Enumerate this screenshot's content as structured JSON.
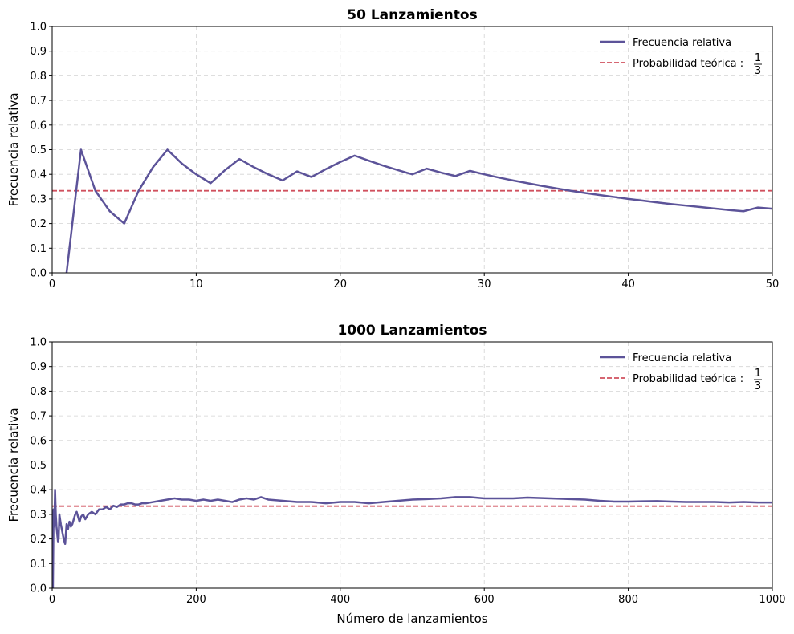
{
  "chart_data": [
    {
      "type": "line",
      "title": "50 Lanzamientos",
      "xlabel": "",
      "ylabel": "Frecuencia relativa",
      "xlim": [
        0,
        50
      ],
      "ylim": [
        0,
        1.0
      ],
      "xticks": [
        0,
        10,
        20,
        30,
        40,
        50
      ],
      "yticks": [
        0.0,
        0.1,
        0.2,
        0.3,
        0.4,
        0.5,
        0.6,
        0.7,
        0.8,
        0.9,
        1.0
      ],
      "xtick_labels": [
        "0",
        "10",
        "20",
        "30",
        "40",
        "50"
      ],
      "ytick_labels": [
        "0.0",
        "0.1",
        "0.2",
        "0.3",
        "0.4",
        "0.5",
        "0.6",
        "0.7",
        "0.8",
        "0.9",
        "1.0"
      ],
      "grid": true,
      "legend_position": "top-right",
      "series": [
        {
          "name": "Frecuencia relativa",
          "color": "#5c5399",
          "style": "solid",
          "x": [
            1,
            2,
            3,
            4,
            5,
            6,
            7,
            8,
            9,
            10,
            11,
            12,
            13,
            14,
            15,
            16,
            17,
            18,
            19,
            20,
            21,
            22,
            23,
            24,
            25,
            26,
            27,
            28,
            29,
            30,
            31,
            32,
            33,
            34,
            35,
            36,
            37,
            38,
            39,
            40,
            41,
            42,
            43,
            44,
            45,
            46,
            47,
            48,
            49,
            50
          ],
          "y": [
            0,
            0.5,
            0.333,
            0.25,
            0.2,
            0.333,
            0.429,
            0.5,
            0.444,
            0.4,
            0.364,
            0.417,
            0.462,
            0.429,
            0.4,
            0.375,
            0.412,
            0.389,
            0.421,
            0.45,
            0.476,
            0.455,
            0.435,
            0.417,
            0.4,
            0.423,
            0.407,
            0.393,
            0.414,
            0.4,
            0.387,
            0.375,
            0.364,
            0.353,
            0.343,
            0.333,
            0.324,
            0.316,
            0.308,
            0.3,
            0.293,
            0.286,
            0.279,
            0.273,
            0.267,
            0.261,
            0.255,
            0.25,
            0.265,
            0.26
          ]
        }
      ],
      "reference_line": {
        "name": "Probabilidad teórica :",
        "fraction_numerator": "1",
        "fraction_denominator": "3",
        "value": 0.3333,
        "color": "#d0505e",
        "style": "dashed"
      }
    },
    {
      "type": "line",
      "title": "1000 Lanzamientos",
      "xlabel": "Número de lanzamientos",
      "ylabel": "Frecuencia relativa",
      "xlim": [
        0,
        1000
      ],
      "ylim": [
        0,
        1.0
      ],
      "xticks": [
        0,
        200,
        400,
        600,
        800,
        1000
      ],
      "yticks": [
        0.0,
        0.1,
        0.2,
        0.3,
        0.4,
        0.5,
        0.6,
        0.7,
        0.8,
        0.9,
        1.0
      ],
      "xtick_labels": [
        "0",
        "200",
        "400",
        "600",
        "800",
        "1000"
      ],
      "ytick_labels": [
        "0.0",
        "0.1",
        "0.2",
        "0.3",
        "0.4",
        "0.5",
        "0.6",
        "0.7",
        "0.8",
        "0.9",
        "1.0"
      ],
      "grid": true,
      "legend_position": "top-right",
      "series": [
        {
          "name": "Frecuencia relativa",
          "color": "#5c5399",
          "style": "solid",
          "x": [
            1,
            2,
            3,
            4,
            5,
            6,
            7,
            8,
            9,
            10,
            12,
            14,
            16,
            18,
            20,
            22,
            24,
            26,
            28,
            30,
            32,
            34,
            36,
            38,
            40,
            43,
            46,
            50,
            55,
            60,
            65,
            70,
            75,
            80,
            85,
            90,
            95,
            100,
            105,
            110,
            115,
            120,
            125,
            130,
            140,
            150,
            160,
            170,
            180,
            190,
            200,
            210,
            220,
            230,
            240,
            250,
            260,
            270,
            280,
            290,
            300,
            320,
            340,
            360,
            380,
            400,
            420,
            440,
            460,
            480,
            500,
            520,
            540,
            560,
            580,
            600,
            620,
            640,
            660,
            680,
            700,
            720,
            740,
            760,
            780,
            800,
            820,
            840,
            860,
            880,
            900,
            920,
            940,
            960,
            980,
            1000
          ],
          "y": [
            0,
            0.32,
            0.25,
            0.4,
            0.3,
            0.25,
            0.22,
            0.19,
            0.2,
            0.3,
            0.26,
            0.23,
            0.2,
            0.18,
            0.26,
            0.24,
            0.27,
            0.25,
            0.26,
            0.28,
            0.3,
            0.31,
            0.29,
            0.27,
            0.29,
            0.3,
            0.28,
            0.3,
            0.31,
            0.3,
            0.32,
            0.32,
            0.33,
            0.32,
            0.335,
            0.33,
            0.34,
            0.34,
            0.345,
            0.345,
            0.34,
            0.34,
            0.345,
            0.345,
            0.35,
            0.355,
            0.36,
            0.365,
            0.36,
            0.36,
            0.355,
            0.36,
            0.355,
            0.36,
            0.355,
            0.35,
            0.36,
            0.365,
            0.36,
            0.37,
            0.36,
            0.355,
            0.35,
            0.35,
            0.345,
            0.35,
            0.35,
            0.345,
            0.35,
            0.355,
            0.36,
            0.362,
            0.365,
            0.37,
            0.37,
            0.365,
            0.365,
            0.365,
            0.368,
            0.366,
            0.364,
            0.362,
            0.36,
            0.355,
            0.352,
            0.352,
            0.353,
            0.354,
            0.352,
            0.35,
            0.35,
            0.35,
            0.348,
            0.35,
            0.348,
            0.348
          ]
        }
      ],
      "reference_line": {
        "name": "Probabilidad teórica :",
        "fraction_numerator": "1",
        "fraction_denominator": "3",
        "value": 0.3333,
        "color": "#d0505e",
        "style": "dashed"
      }
    }
  ]
}
